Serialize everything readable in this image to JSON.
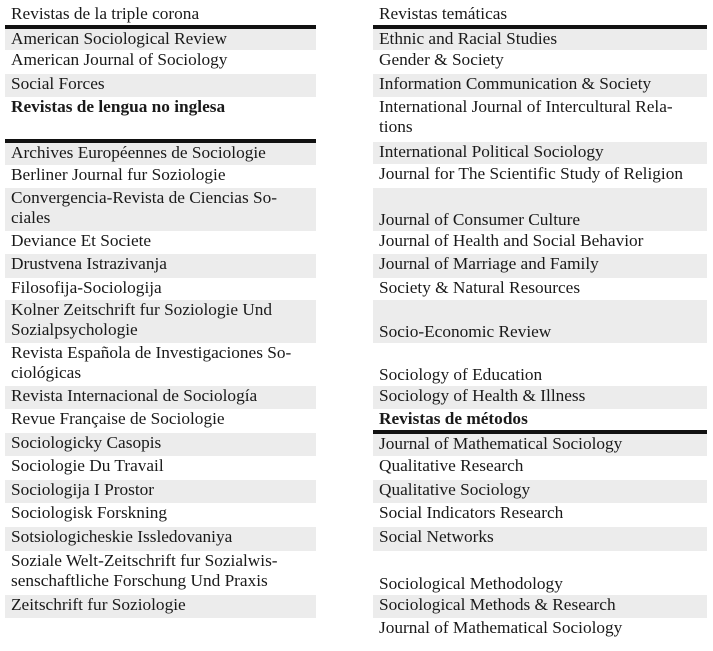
{
  "left": {
    "header": "Revistas de la triple corona",
    "rows": [
      "American Sociological Review",
      "American Journal of Sociology",
      "Social Forces",
      "Revistas de lengua no inglesa",
      "Archives Européennes de Sociologie",
      "Berliner Journal fur Soziologie",
      "Convergencia-Revista de Ciencias So-|ciales",
      "Deviance Et Societe",
      "Drustvena Istrazivanja",
      "Filosofija-Sociologija",
      "Kolner Zeitschrift fur Soziologie Und|Sozialpsychologie",
      "Revista Española de Investigaciones So-|ciológicas",
      "Revista Internacional de Sociología",
      "Revue Française de Sociologie",
      "Sociologicky Casopis",
      "Sociologie Du Travail",
      "Sociologija I Prostor",
      "Sociologisk Forskning",
      "Sotsiologicheskie Issledovaniya",
      "Soziale Welt-Zeitschrift fur Sozialwis-|senschaftliche Forschung Und Praxis",
      "Zeitschrift fur Soziologie"
    ]
  },
  "right": {
    "header": "Revistas temáticas",
    "rows": [
      "Ethnic and Racial Studies",
      "Gender & Society",
      "Information Communication & Society",
      "International Journal of Intercultural Rela-|tions",
      "International Political Sociology",
      "Journal for The Scientific Study of Religion",
      "Journal of Consumer Culture",
      "Journal of Health and Social Behavior",
      "Journal of Marriage and Family",
      "Society & Natural Resources",
      "Socio-Economic Review",
      "Sociology of Education",
      "Sociology of Health & Illness",
      "Revistas de métodos",
      "Journal of Mathematical Sociology",
      "Qualitative Research",
      "Qualitative Sociology",
      "Social Indicators Research",
      "Social Networks",
      "Sociological Methodology",
      "Sociological Methods & Research",
      "Journal of Mathematical Sociology"
    ]
  },
  "colors": {
    "row_shade": "#ececec",
    "rule": "#111111"
  }
}
